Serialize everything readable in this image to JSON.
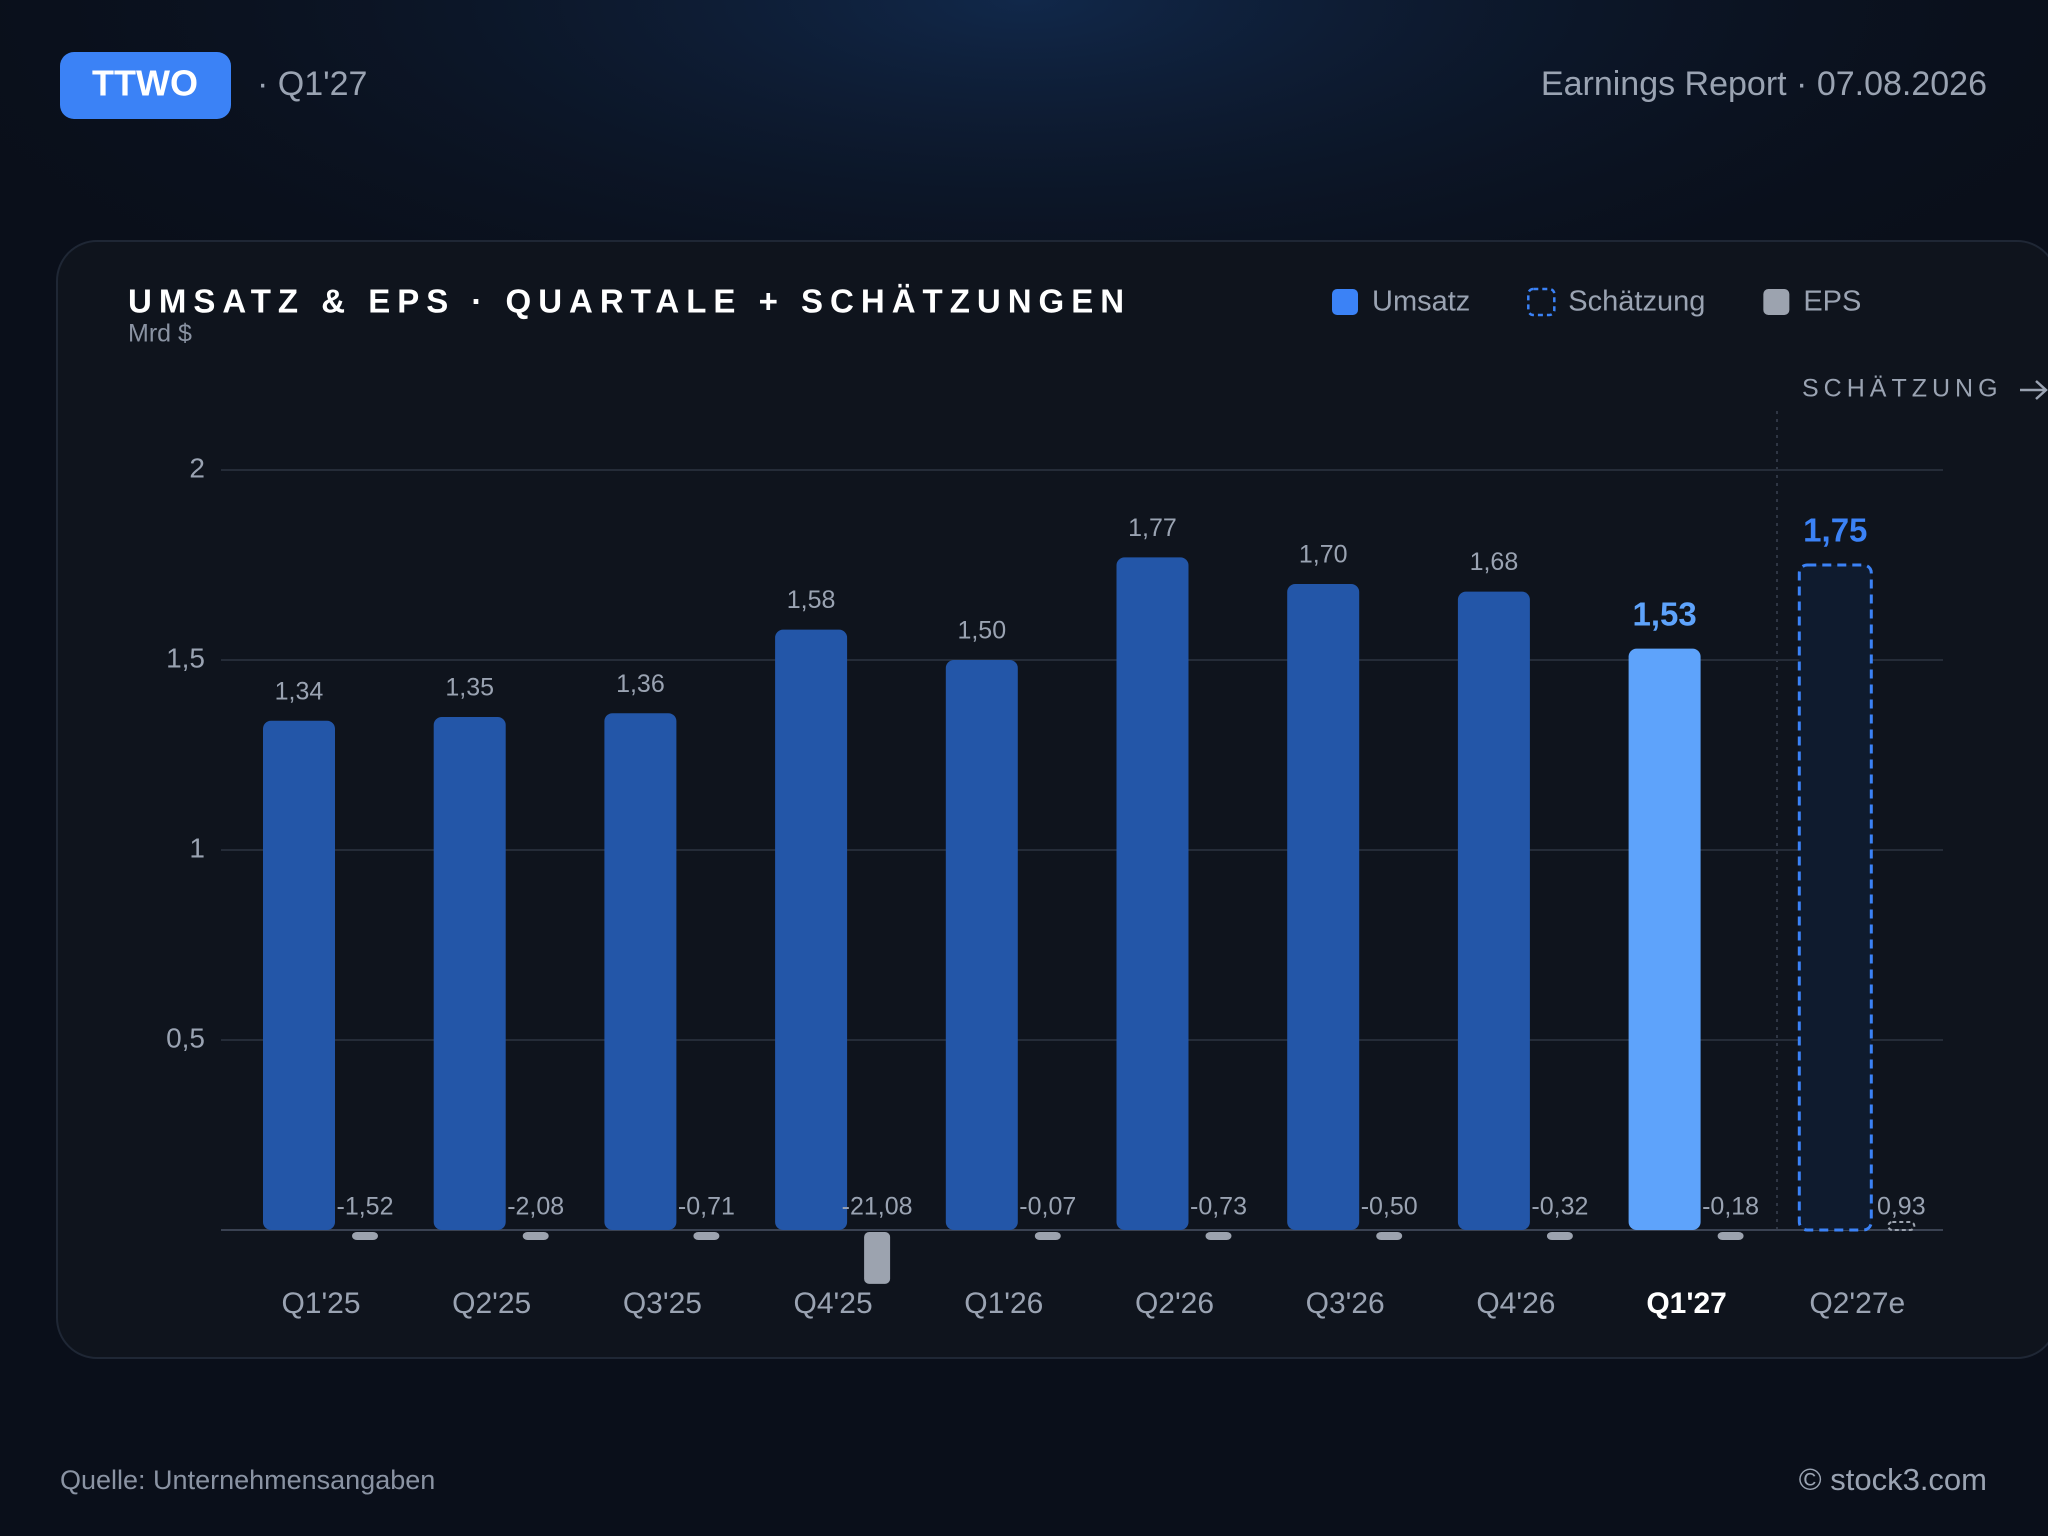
{
  "header": {
    "ticker": "TTWO",
    "period": "· Q1'27",
    "report": "Earnings Report · 07.08.2026"
  },
  "chart_data": {
    "type": "bar",
    "title": "UMSATZ & EPS · QUARTALE + SCHÄTZUNGEN",
    "y_label": "Mrd $",
    "annotation": "SCHÄTZUNG",
    "categories": [
      "Q1'25",
      "Q2'25",
      "Q3'25",
      "Q4'25",
      "Q1'26",
      "Q2'26",
      "Q3'26",
      "Q4'26",
      "Q1'27",
      "Q2'27e"
    ],
    "highlight": 8,
    "highlight_color": "#5ea3fb",
    "series": [
      {
        "name": "Umsatz",
        "color": "#2356a8",
        "legend_color": "#3b82f6",
        "values": [
          1.34,
          1.35,
          1.36,
          1.58,
          1.5,
          1.77,
          1.7,
          1.68,
          1.53,
          null
        ],
        "value_labels": [
          "1,34",
          "1,35",
          "1,36",
          "1,58",
          "1,50",
          "1,77",
          "1,70",
          "1,68",
          "1,53",
          null
        ]
      },
      {
        "name": "Schätzung",
        "color": "#3b82f6",
        "dashed": true,
        "values": [
          null,
          null,
          null,
          null,
          null,
          null,
          null,
          null,
          null,
          1.75
        ],
        "value_labels": [
          null,
          null,
          null,
          null,
          null,
          null,
          null,
          null,
          null,
          "1,75"
        ]
      },
      {
        "name": "EPS",
        "color": "#9ca3af",
        "axis": "y2",
        "values": [
          -1.52,
          -2.08,
          -0.71,
          -21.08,
          -0.07,
          -0.73,
          -0.5,
          -0.32,
          -0.18,
          0.93
        ],
        "value_labels": [
          "-1,52",
          "-2,08",
          "-0,71",
          "-21,08",
          "-0,07",
          "-0,73",
          "-0,50",
          "-0,32",
          "-0,18",
          "0,93"
        ]
      }
    ],
    "ylim": [
      0,
      2.2
    ],
    "yticks": [
      {
        "value": 0.5,
        "label": "0,5"
      },
      1,
      {
        "value": 1.5,
        "label": "1,5"
      },
      2
    ],
    "y2lim": [
      0,
      340
    ],
    "grid": true
  },
  "footer": {
    "source": "Quelle: Unternehmensangaben",
    "credit": "© stock3.com"
  }
}
